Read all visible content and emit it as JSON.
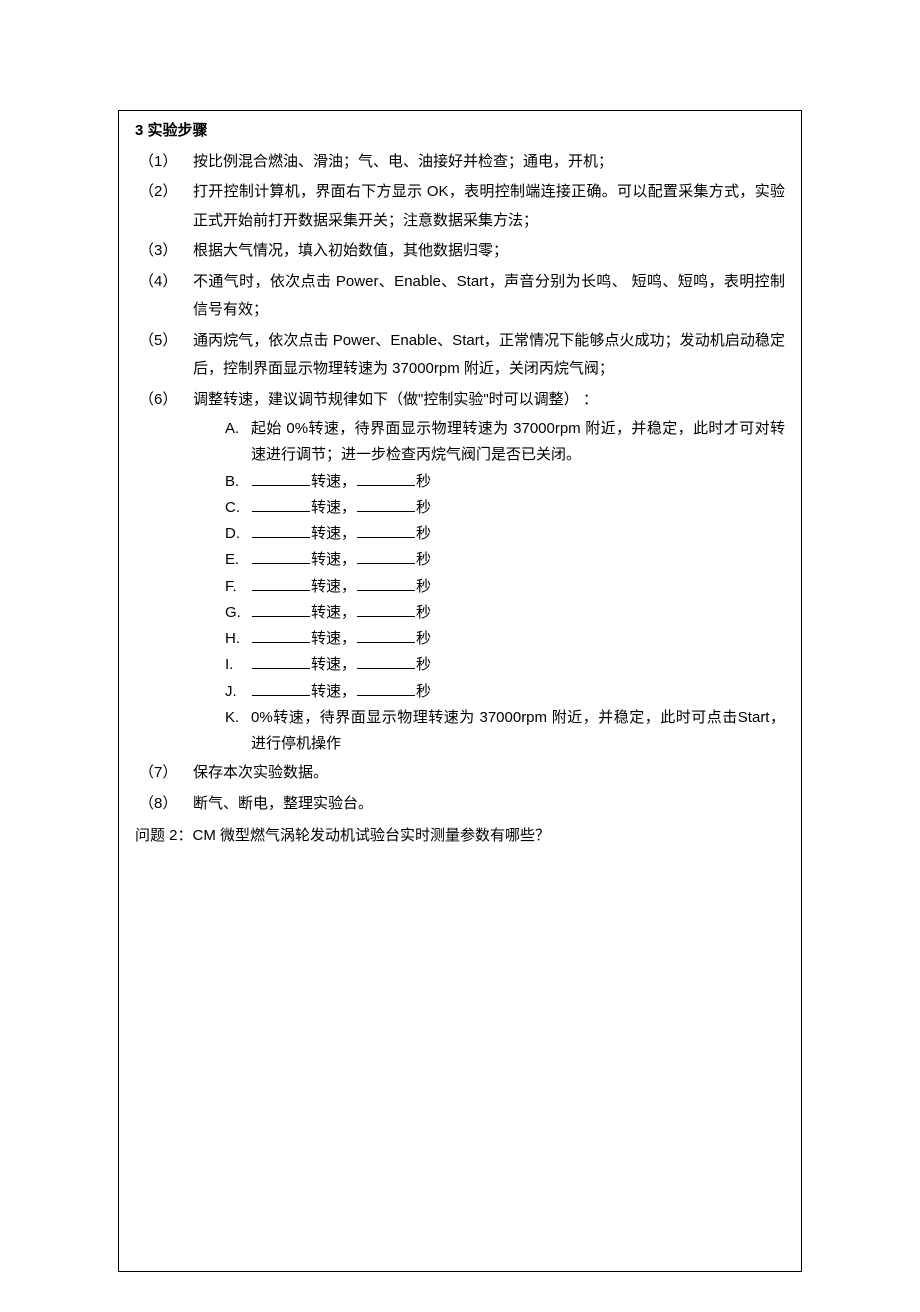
{
  "section_title": "3 实验步骤",
  "steps": [
    {
      "num": "（1）",
      "text": "按比例混合燃油、滑油；气、电、油接好并检查；通电，开机；"
    },
    {
      "num": "（2）",
      "text": "打开控制计算机，界面右下方显示 OK，表明控制端连接正确。可以配置采集方式，实验正式开始前打开数据采集开关；注意数据采集方法；"
    },
    {
      "num": "（3）",
      "text": "根据大气情况，填入初始数值，其他数据归零；"
    },
    {
      "num": "（4）",
      "text": "不通气时，依次点击 Power、Enable、Start，声音分别为长鸣、 短鸣、短鸣，表明控制信号有效；"
    },
    {
      "num": "（5）",
      "text": "通丙烷气，依次点击 Power、Enable、Start，正常情况下能够点火成功；发动机启动稳定后，控制界面显示物理转速为 37000rpm 附近，关闭丙烷气阀；"
    },
    {
      "num": "（6）",
      "text": "调整转速，建议调节规律如下（做\"控制实验\"时可以调整）   ："
    },
    {
      "num": "（7）",
      "text": "保存本次实验数据。"
    },
    {
      "num": "（8）",
      "text": "断气、断电，整理实验台。"
    }
  ],
  "sub_first": {
    "letter": "A.",
    "text": "起始 0%转速，待界面显示物理转速为  37000rpm 附近，并稳定，此时才可对转速进行调节；进一步检查丙烷气阀门是否已关闭。"
  },
  "sub_fill_letters": [
    "B.",
    "C.",
    "D.",
    "E.",
    "F.",
    "G.",
    "H.",
    "I.",
    "J."
  ],
  "sub_fill_labels": {
    "speed": "转速，",
    "sec": "秒"
  },
  "sub_last": {
    "letter": "K.",
    "text": "0%转速，待界面显示物理转速为 37000rpm 附近，并稳定，此时可点击Start，进行停机操作"
  },
  "q2": "问题 2：CM 微型燃气涡轮发动机试验台实时测量参数有哪些？"
}
